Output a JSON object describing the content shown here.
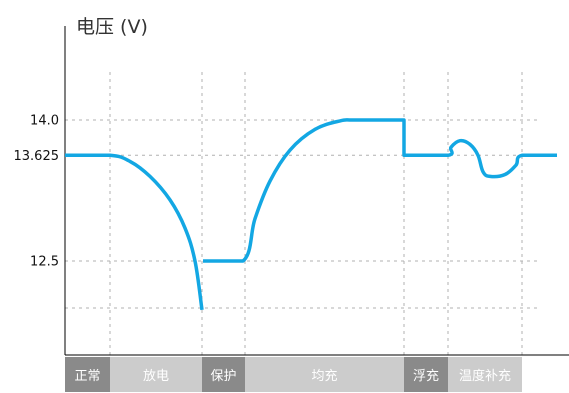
{
  "chart_data": {
    "type": "line",
    "title": "",
    "ylabel": "电压 (V)",
    "xlabel": "",
    "y_ticks": [
      {
        "value": 14.0,
        "label": "14.0"
      },
      {
        "value": 13.625,
        "label": "13.625"
      },
      {
        "value": 12.5,
        "label": "12.5"
      }
    ],
    "y_extra_gridline": 12.0,
    "ylim": [
      11.5,
      15.0
    ],
    "xlim": [
      0,
      500
    ],
    "grid": true,
    "x_gridlines": [
      45,
      137,
      180,
      339,
      383,
      457
    ],
    "phases": [
      {
        "label": "正常",
        "start": 0,
        "end": 45,
        "color": "#8a8a8a",
        "text_color": "#ffffff"
      },
      {
        "label": "放电",
        "start": 45,
        "end": 137,
        "color": "#cccccc",
        "text_color": "#ffffff"
      },
      {
        "label": "保护",
        "start": 137,
        "end": 180,
        "color": "#8a8a8a",
        "text_color": "#ffffff"
      },
      {
        "label": "均充",
        "start": 180,
        "end": 339,
        "color": "#cccccc",
        "text_color": "#ffffff"
      },
      {
        "label": "浮充",
        "start": 339,
        "end": 383,
        "color": "#8a8a8a",
        "text_color": "#ffffff"
      },
      {
        "label": "温度补充",
        "start": 383,
        "end": 457,
        "color": "#cccccc",
        "text_color": "#ffffff"
      }
    ],
    "series": [
      {
        "color": "#13a7e3",
        "segments": [
          [
            [
              0,
              13.625
            ],
            [
              45,
              13.625
            ],
            [
              65,
              13.56
            ],
            [
              85,
              13.4
            ],
            [
              105,
              13.15
            ],
            [
              120,
              12.85
            ],
            [
              130,
              12.5
            ],
            [
              137,
              11.98
            ]
          ],
          [
            [
              138,
              12.5
            ],
            [
              178,
              12.5
            ],
            [
              190,
              12.95
            ],
            [
              205,
              13.35
            ],
            [
              225,
              13.68
            ],
            [
              250,
              13.9
            ],
            [
              275,
              13.99
            ],
            [
              290,
              14.0
            ],
            [
              339,
              14.0
            ],
            [
              339,
              13.625
            ],
            [
              383,
              13.625
            ],
            [
              386,
              13.71
            ],
            [
              395,
              13.78
            ],
            [
              405,
              13.74
            ],
            [
              413,
              13.625
            ],
            [
              418,
              13.45
            ],
            [
              425,
              13.4
            ],
            [
              440,
              13.42
            ],
            [
              451,
              13.52
            ],
            [
              457,
              13.625
            ],
            [
              492,
              13.625
            ]
          ]
        ]
      }
    ]
  }
}
